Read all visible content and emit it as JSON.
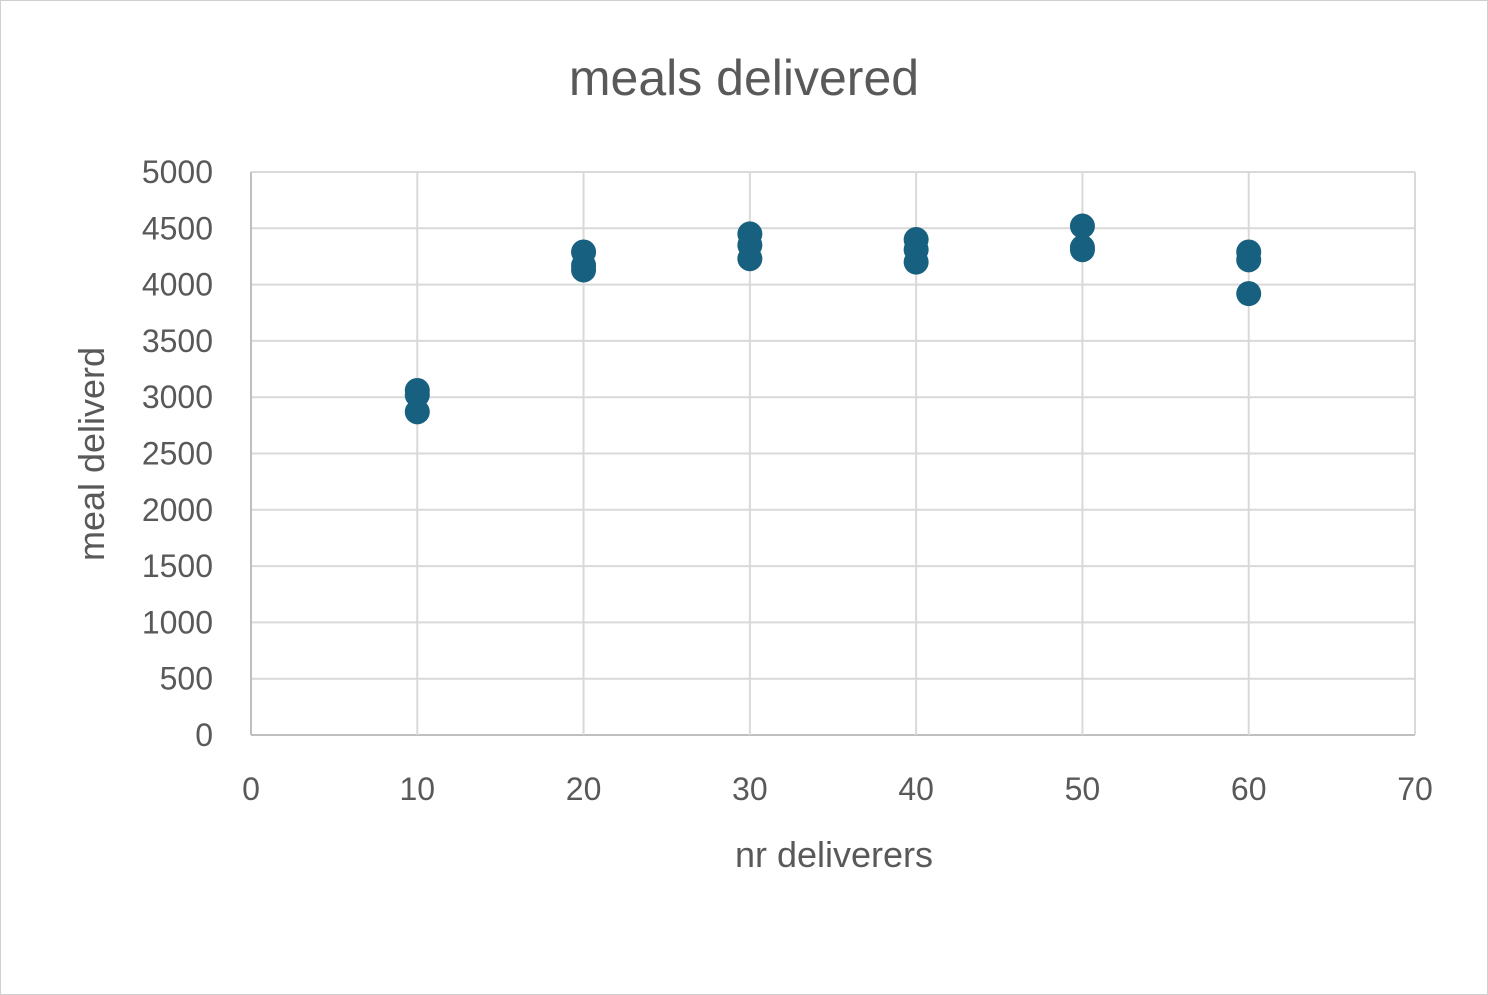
{
  "chart_data": {
    "type": "scatter",
    "title": "meals delivered",
    "xlabel": "nr deliverers",
    "ylabel": "meal deliverd",
    "xlim": [
      0,
      70
    ],
    "ylim": [
      0,
      5000
    ],
    "xticks": [
      0,
      10,
      20,
      30,
      40,
      50,
      60,
      70
    ],
    "yticks": [
      0,
      500,
      1000,
      1500,
      2000,
      2500,
      3000,
      3500,
      4000,
      4500,
      5000
    ],
    "grid": true,
    "legend": "none",
    "series": [
      {
        "color": "#17607f",
        "points": [
          {
            "x": 10,
            "y": 3060
          },
          {
            "x": 10,
            "y": 3020
          },
          {
            "x": 10,
            "y": 2870
          },
          {
            "x": 20,
            "y": 4290
          },
          {
            "x": 20,
            "y": 4170
          },
          {
            "x": 20,
            "y": 4130
          },
          {
            "x": 30,
            "y": 4450
          },
          {
            "x": 30,
            "y": 4350
          },
          {
            "x": 30,
            "y": 4230
          },
          {
            "x": 40,
            "y": 4400
          },
          {
            "x": 40,
            "y": 4310
          },
          {
            "x": 40,
            "y": 4200
          },
          {
            "x": 50,
            "y": 4520
          },
          {
            "x": 50,
            "y": 4330
          },
          {
            "x": 50,
            "y": 4310
          },
          {
            "x": 60,
            "y": 4290
          },
          {
            "x": 60,
            "y": 4220
          },
          {
            "x": 60,
            "y": 3920
          }
        ]
      }
    ]
  }
}
